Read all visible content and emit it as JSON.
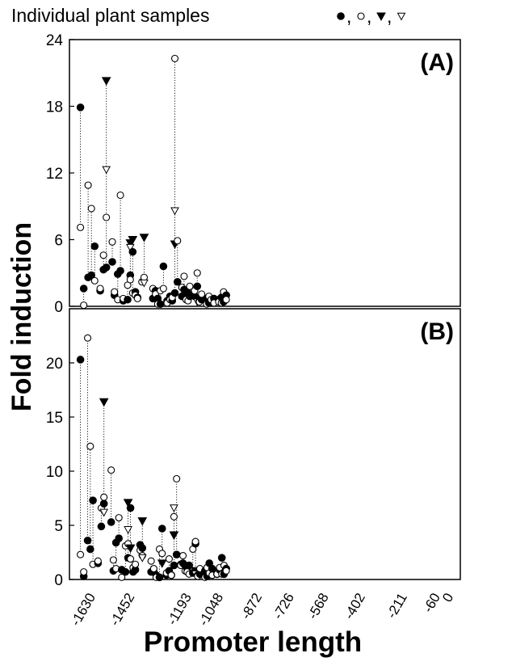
{
  "legend": {
    "text": "Individual plant samples",
    "markers": [
      "filled-circle",
      "open-circle",
      "filled-triangle-down",
      "open-triangle-down"
    ]
  },
  "chart_data": [
    {
      "type": "scatter",
      "panel_label": "(A)",
      "ylabel": "Fold induction",
      "xlabel": "Promoter length",
      "ylim": [
        0,
        24
      ],
      "yticks": [
        0,
        6,
        12,
        18,
        24
      ],
      "xlim": [
        -1750,
        30
      ],
      "x_tick_labels": [
        "-1630",
        "-1452",
        "-1193",
        "-1048",
        "-872",
        "-726",
        "-568",
        "-402",
        "-211",
        "-60",
        "0"
      ],
      "x_tick_values": [
        -1630,
        -1452,
        -1193,
        -1048,
        -872,
        -726,
        -568,
        -402,
        -211,
        -60,
        0
      ],
      "groups": [
        {
          "x": -1700,
          "values": {
            "filled_circle": 17.9,
            "open_circle": 7.1
          }
        },
        {
          "x": -1685,
          "values": {
            "filled_circle": 1.6,
            "open_circle": 0.1
          }
        },
        {
          "x": -1665,
          "values": {
            "filled_circle": 2.6,
            "open_circle": 10.9
          }
        },
        {
          "x": -1650,
          "values": {
            "filled_circle": 2.8,
            "open_circle": 8.8
          }
        },
        {
          "x": -1635,
          "values": {
            "filled_circle": 5.4,
            "open_circle": 2.3
          }
        },
        {
          "x": -1610,
          "values": {
            "filled_circle": 1.4,
            "open_circle": 1.6
          }
        },
        {
          "x": -1595,
          "values": {
            "filled_circle": 3.3,
            "open_circle": 4.6
          }
        },
        {
          "x": -1582,
          "values": {
            "filled_circle": 3.5,
            "open_circle": 8.0,
            "filled_triangle": 20.3,
            "open_triangle": 12.3
          }
        },
        {
          "x": -1555,
          "values": {
            "filled_circle": 4.0,
            "open_circle": 5.8
          }
        },
        {
          "x": -1545,
          "values": {
            "filled_circle": 1.0,
            "open_circle": 1.3
          }
        },
        {
          "x": -1530,
          "values": {
            "filled_circle": 2.9,
            "open_circle": 0.6
          }
        },
        {
          "x": -1518,
          "values": {
            "filled_circle": 3.2,
            "open_circle": 10.0
          }
        },
        {
          "x": -1505,
          "values": {
            "filled_circle": 0.5,
            "open_circle": 0.7
          }
        },
        {
          "x": -1485,
          "values": {
            "filled_circle": 0.6,
            "open_circle": 1.9
          }
        },
        {
          "x": -1473,
          "values": {
            "filled_circle": 2.8,
            "open_circle": 2.4,
            "filled_triangle": 5.7,
            "open_triangle": 5.3
          }
        },
        {
          "x": -1462,
          "values": {
            "filled_circle": 4.9,
            "open_circle": 1.2,
            "filled_triangle": 6.0
          }
        },
        {
          "x": -1450,
          "values": {
            "filled_circle": 1.3,
            "open_circle": 1.0
          }
        },
        {
          "x": -1440,
          "values": {
            "filled_circle": 0.8,
            "open_circle": 0.7
          }
        },
        {
          "x": -1420,
          "values": {
            "open_circle": 2.2
          }
        },
        {
          "x": -1410,
          "values": {
            "open_circle": 2.6,
            "filled_triangle": 6.2,
            "open_triangle": 2.1
          }
        },
        {
          "x": -1370,
          "values": {
            "filled_circle": 0.7,
            "open_circle": 1.6
          }
        },
        {
          "x": -1358,
          "values": {
            "filled_circle": 1.4,
            "open_circle": 1.1
          }
        },
        {
          "x": -1348,
          "values": {
            "filled_circle": 0.7,
            "open_circle": 0.2
          }
        },
        {
          "x": -1336,
          "values": {
            "filled_circle": 0.2,
            "open_circle": 1.4
          }
        },
        {
          "x": -1322,
          "values": {
            "filled_circle": 3.6,
            "open_circle": 1.6
          }
        },
        {
          "x": -1305,
          "values": {
            "filled_circle": 0.5,
            "open_circle": 0.3
          }
        },
        {
          "x": -1292,
          "values": {
            "filled_circle": 0.9,
            "open_circle": 0.6
          }
        },
        {
          "x": -1282,
          "values": {
            "filled_circle": 0.5,
            "open_circle": 0.8
          }
        },
        {
          "x": -1270,
          "values": {
            "filled_circle": 1.2,
            "open_circle": 22.3,
            "filled_triangle": 5.6,
            "open_triangle": 8.6
          }
        },
        {
          "x": -1258,
          "values": {
            "filled_circle": 2.2,
            "open_circle": 5.9
          }
        },
        {
          "x": -1238,
          "values": {
            "filled_circle": 0.9,
            "open_circle": 1.7
          }
        },
        {
          "x": -1228,
          "values": {
            "filled_circle": 1.5,
            "open_circle": 2.7
          }
        },
        {
          "x": -1219,
          "values": {
            "filled_circle": 1.0,
            "open_circle": 0.6
          }
        },
        {
          "x": -1210,
          "values": {
            "filled_circle": 1.2,
            "open_circle": 0.5
          }
        },
        {
          "x": -1202,
          "values": {
            "filled_circle": 0.9,
            "open_circle": 1.8
          }
        },
        {
          "x": -1180,
          "values": {
            "filled_circle": 0.9,
            "open_circle": 1.4
          }
        },
        {
          "x": -1168,
          "values": {
            "filled_circle": 1.8,
            "open_circle": 3.0,
            "filled_triangle": 0.7,
            "open_triangle": 0.4
          }
        },
        {
          "x": -1158,
          "values": {
            "filled_circle": 0.5,
            "open_circle": 0.4
          }
        },
        {
          "x": -1148,
          "values": {
            "filled_circle": 0.6,
            "open_circle": 1.1
          }
        },
        {
          "x": -1125,
          "values": {
            "filled_circle": 0.7,
            "open_circle": 0.2
          }
        },
        {
          "x": -1115,
          "values": {
            "filled_circle": 0.3,
            "open_circle": 0.9
          }
        },
        {
          "x": -1105,
          "values": {
            "filled_circle": 0.4,
            "open_circle": 0.6
          }
        },
        {
          "x": -1092,
          "values": {
            "filled_circle": 0.7,
            "open_circle": 0.3
          }
        },
        {
          "x": -1070,
          "values": {
            "filled_circle": 0.6,
            "open_circle": 0.4
          }
        },
        {
          "x": -1058,
          "values": {
            "filled_circle": 0.8,
            "open_circle": 0.3
          }
        },
        {
          "x": -1048,
          "values": {
            "filled_circle": 0.4,
            "open_circle": 1.3
          }
        },
        {
          "x": -1036,
          "values": {
            "filled_circle": 1.0,
            "open_circle": 0.6
          }
        }
      ]
    },
    {
      "type": "scatter",
      "panel_label": "(B)",
      "ylabel": "Fold induction",
      "xlabel": "Promoter length",
      "ylim": [
        0,
        25
      ],
      "yticks": [
        0,
        5,
        10,
        15,
        20
      ],
      "xlim": [
        -1750,
        30
      ],
      "x_tick_labels": [
        "-1630",
        "-1452",
        "-1193",
        "-1048",
        "-872",
        "-726",
        "-568",
        "-402",
        "-211",
        "-60",
        "0"
      ],
      "x_tick_values": [
        -1630,
        -1452,
        -1193,
        -1048,
        -872,
        -726,
        -568,
        -402,
        -211,
        -60,
        0
      ],
      "groups": [
        {
          "x": -1700,
          "values": {
            "filled_circle": 20.3,
            "open_circle": 2.3
          }
        },
        {
          "x": -1685,
          "values": {
            "filled_circle": 0.3,
            "open_circle": 0.7
          }
        },
        {
          "x": -1667,
          "values": {
            "filled_circle": 3.6,
            "open_circle": 22.3
          }
        },
        {
          "x": -1655,
          "values": {
            "filled_circle": 2.8,
            "open_circle": 12.3
          }
        },
        {
          "x": -1643,
          "values": {
            "filled_circle": 7.3,
            "open_circle": 1.4
          }
        },
        {
          "x": -1620,
          "values": {
            "filled_circle": 1.5,
            "open_circle": 1.7
          }
        },
        {
          "x": -1605,
          "values": {
            "filled_circle": 4.9,
            "open_circle": 6.6
          }
        },
        {
          "x": -1593,
          "values": {
            "filled_circle": 7.0,
            "open_circle": 7.6,
            "filled_triangle": 16.4,
            "open_triangle": 6.2
          }
        },
        {
          "x": -1560,
          "values": {
            "filled_circle": 5.3,
            "open_circle": 10.1
          }
        },
        {
          "x": -1550,
          "values": {
            "filled_circle": 0.8,
            "open_circle": 1.8
          }
        },
        {
          "x": -1538,
          "values": {
            "filled_circle": 3.4,
            "open_circle": 1.0
          }
        },
        {
          "x": -1525,
          "values": {
            "filled_circle": 3.8,
            "open_circle": 5.7
          }
        },
        {
          "x": -1512,
          "values": {
            "filled_circle": 0.9,
            "open_circle": 0.2
          }
        },
        {
          "x": -1495,
          "values": {
            "filled_circle": 0.7,
            "open_circle": 3.1
          }
        },
        {
          "x": -1483,
          "values": {
            "filled_circle": 2.0,
            "open_circle": 3.3,
            "filled_triangle": 7.1,
            "open_triangle": 4.6
          }
        },
        {
          "x": -1472,
          "values": {
            "filled_circle": 6.6,
            "open_circle": 1.9,
            "filled_triangle": 2.9
          }
        },
        {
          "x": -1460,
          "values": {
            "filled_circle": 0.7,
            "open_circle": 1.1
          }
        },
        {
          "x": -1450,
          "values": {
            "filled_circle": 0.9,
            "open_circle": 1.4
          }
        },
        {
          "x": -1428,
          "values": {
            "filled_circle": 3.2,
            "open_circle": 2.7
          }
        },
        {
          "x": -1418,
          "values": {
            "filled_circle": 2.9,
            "open_circle": 2.2,
            "filled_triangle": 5.4,
            "open_triangle": 2.0
          }
        },
        {
          "x": -1378,
          "values": {
            "filled_circle": 0.7,
            "open_circle": 1.7
          }
        },
        {
          "x": -1366,
          "values": {
            "filled_circle": 0.7,
            "open_circle": 1.0
          }
        },
        {
          "x": -1355,
          "values": {
            "filled_circle": 0.4,
            "open_circle": 0.2
          }
        },
        {
          "x": -1340,
          "values": {
            "filled_circle": 0.2,
            "open_circle": 2.8
          }
        },
        {
          "x": -1328,
          "values": {
            "filled_circle": 4.7,
            "open_circle": 2.4,
            "filled_triangle": 1.5
          }
        },
        {
          "x": -1308,
          "values": {
            "filled_circle": 0.4,
            "open_circle": 0.6
          }
        },
        {
          "x": -1296,
          "values": {
            "filled_circle": 0.8,
            "open_circle": 1.9
          }
        },
        {
          "x": -1286,
          "values": {
            "filled_circle": 0.4,
            "open_circle": 0.4
          }
        },
        {
          "x": -1274,
          "values": {
            "filled_circle": 1.3,
            "open_circle": 5.8,
            "filled_triangle": 4.1,
            "open_triangle": 6.6
          }
        },
        {
          "x": -1262,
          "values": {
            "filled_circle": 2.3,
            "open_circle": 9.3
          }
        },
        {
          "x": -1243,
          "values": {
            "filled_circle": 1.4,
            "open_circle": 1.3
          }
        },
        {
          "x": -1233,
          "values": {
            "filled_circle": 1.5,
            "open_circle": 2.2
          }
        },
        {
          "x": -1223,
          "values": {
            "filled_circle": 1.3,
            "open_circle": 0.8
          }
        },
        {
          "x": -1214,
          "values": {
            "filled_circle": 1.0,
            "open_circle": 0.7
          }
        },
        {
          "x": -1205,
          "values": {
            "filled_circle": 1.3,
            "open_circle": 0.5
          }
        },
        {
          "x": -1188,
          "values": {
            "filled_circle": 0.6,
            "open_circle": 2.8
          }
        },
        {
          "x": -1176,
          "values": {
            "filled_circle": 3.3,
            "open_circle": 3.5,
            "filled_triangle": 0.8,
            "open_triangle": 0.5
          }
        },
        {
          "x": -1166,
          "values": {
            "filled_circle": 0.4,
            "open_circle": 0.3
          }
        },
        {
          "x": -1156,
          "values": {
            "filled_circle": 0.5,
            "open_circle": 1.0
          }
        },
        {
          "x": -1133,
          "values": {
            "filled_circle": 0.8,
            "open_circle": 0.2
          }
        },
        {
          "x": -1123,
          "values": {
            "filled_circle": 0.3,
            "open_circle": 1.1
          }
        },
        {
          "x": -1113,
          "values": {
            "filled_circle": 1.5,
            "open_circle": 0.6
          }
        },
        {
          "x": -1100,
          "values": {
            "filled_circle": 1.0,
            "open_circle": 0.4
          }
        },
        {
          "x": -1078,
          "values": {
            "filled_circle": 0.5,
            "open_circle": 0.5
          }
        },
        {
          "x": -1066,
          "values": {
            "filled_circle": 0.9,
            "open_circle": 1.1
          }
        },
        {
          "x": -1056,
          "values": {
            "filled_circle": 2.0,
            "open_circle": 0.5
          }
        },
        {
          "x": -1046,
          "values": {
            "filled_circle": 0.5,
            "open_circle": 1.3
          }
        },
        {
          "x": -1036,
          "values": {
            "filled_circle": 1.0,
            "open_circle": 0.8
          }
        }
      ]
    }
  ]
}
